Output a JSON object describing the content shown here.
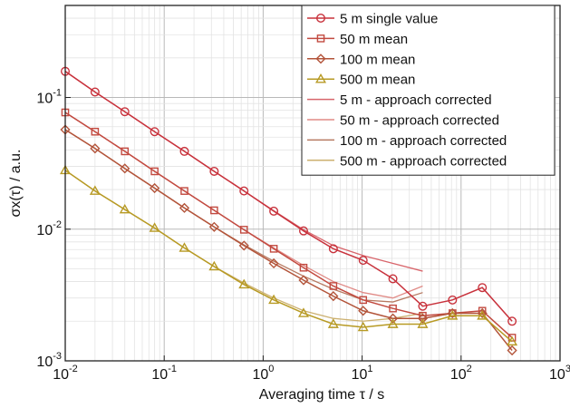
{
  "chart_data": {
    "type": "line",
    "xscale": "log",
    "yscale": "log",
    "xlim": [
      0.01,
      1000
    ],
    "ylim": [
      0.001,
      0.5
    ],
    "xlabel": "Averaging time τ / s",
    "ylabel": "σx(τ) / a.u.",
    "x_ticks": [
      {
        "value": 0.01,
        "base": "10",
        "exp": "-2"
      },
      {
        "value": 0.1,
        "base": "10",
        "exp": "-1"
      },
      {
        "value": 1,
        "base": "10",
        "exp": "0"
      },
      {
        "value": 10,
        "base": "10",
        "exp": "1"
      },
      {
        "value": 100,
        "base": "10",
        "exp": "2"
      },
      {
        "value": 1000,
        "base": "10",
        "exp": "3"
      }
    ],
    "y_ticks": [
      {
        "value": 0.001,
        "base": "10",
        "exp": "-3"
      },
      {
        "value": 0.01,
        "base": "10",
        "exp": "-2"
      },
      {
        "value": 0.1,
        "base": "10",
        "exp": "-1"
      }
    ],
    "grid": true,
    "legend_position": "top-right",
    "series": [
      {
        "name": "5 m single value",
        "color": "#c8323c",
        "marker": "circle",
        "x": [
          0.01,
          0.02,
          0.04,
          0.08,
          0.16,
          0.32,
          0.64,
          1.28,
          2.56,
          5.12,
          10.24,
          20.48,
          40.96,
          81.92,
          163.84,
          327.68
        ],
        "y": [
          0.158,
          0.11,
          0.078,
          0.055,
          0.039,
          0.0275,
          0.0195,
          0.0137,
          0.0097,
          0.0071,
          0.0058,
          0.0042,
          0.0026,
          0.0029,
          0.0036,
          0.002
        ]
      },
      {
        "name": "50 m mean",
        "color": "#c24a40",
        "marker": "square",
        "x": [
          0.01,
          0.02,
          0.04,
          0.08,
          0.16,
          0.32,
          0.64,
          1.28,
          2.56,
          5.12,
          10.24,
          20.48,
          40.96,
          81.92,
          163.84,
          327.68
        ],
        "y": [
          0.077,
          0.055,
          0.039,
          0.0275,
          0.0195,
          0.0139,
          0.0099,
          0.0071,
          0.0051,
          0.0037,
          0.0029,
          0.0025,
          0.0022,
          0.0023,
          0.0024,
          0.0015
        ]
      },
      {
        "name": "100 m mean",
        "color": "#b3543a",
        "marker": "diamond",
        "x": [
          0.01,
          0.02,
          0.04,
          0.08,
          0.16,
          0.32,
          0.64,
          1.28,
          2.56,
          5.12,
          10.24,
          20.48,
          40.96,
          81.92,
          163.84,
          327.68
        ],
        "y": [
          0.057,
          0.041,
          0.0289,
          0.0205,
          0.0145,
          0.0104,
          0.0075,
          0.0055,
          0.0041,
          0.0031,
          0.0024,
          0.0021,
          0.0021,
          0.0023,
          0.0023,
          0.0012
        ]
      },
      {
        "name": "500 m mean",
        "color": "#b79a24",
        "marker": "triangle",
        "x": [
          0.01,
          0.02,
          0.04,
          0.08,
          0.16,
          0.32,
          0.64,
          1.28,
          2.56,
          5.12,
          10.24,
          20.48,
          40.96,
          81.92,
          163.84,
          327.68
        ],
        "y": [
          0.028,
          0.0195,
          0.0141,
          0.0102,
          0.0072,
          0.0052,
          0.0038,
          0.0029,
          0.0023,
          0.0019,
          0.0018,
          0.0019,
          0.0019,
          0.0022,
          0.0022,
          0.0014
        ]
      },
      {
        "name": "5 m - approach corrected",
        "color": "#d8656b",
        "marker": "none",
        "x": [
          0.01,
          0.02,
          0.04,
          0.08,
          0.16,
          0.32,
          0.64,
          1.28,
          2.56,
          5.12,
          10.24,
          20.48,
          40.96
        ],
        "y": [
          0.158,
          0.11,
          0.078,
          0.055,
          0.039,
          0.0275,
          0.0195,
          0.0138,
          0.0099,
          0.0075,
          0.0063,
          0.0055,
          0.0048
        ]
      },
      {
        "name": "50 m - approach corrected",
        "color": "#e08a86",
        "marker": "none",
        "x": [
          0.01,
          0.02,
          0.04,
          0.08,
          0.16,
          0.32,
          0.64,
          1.28,
          2.56,
          5.12,
          10.24,
          20.48,
          40.96
        ],
        "y": [
          0.077,
          0.055,
          0.039,
          0.0275,
          0.0195,
          0.0139,
          0.0099,
          0.0072,
          0.0053,
          0.004,
          0.0033,
          0.003,
          0.0037
        ]
      },
      {
        "name": "100 m - approach corrected",
        "color": "#b77a62",
        "marker": "none",
        "x": [
          0.01,
          0.02,
          0.04,
          0.08,
          0.16,
          0.32,
          0.64,
          1.28,
          2.56,
          5.12,
          10.24,
          20.48,
          40.96
        ],
        "y": [
          0.057,
          0.041,
          0.0289,
          0.0205,
          0.0145,
          0.0104,
          0.0076,
          0.0057,
          0.0044,
          0.0035,
          0.0029,
          0.0028,
          0.0033
        ]
      },
      {
        "name": "500 m - approach corrected",
        "color": "#ccb070",
        "marker": "none",
        "x": [
          0.01,
          0.02,
          0.04,
          0.08,
          0.16,
          0.32,
          0.64,
          1.28,
          2.56,
          5.12,
          10.24,
          20.48,
          40.96
        ],
        "y": [
          0.028,
          0.0195,
          0.0141,
          0.0102,
          0.0072,
          0.0052,
          0.0039,
          0.003,
          0.0024,
          0.0021,
          0.002,
          0.0021,
          0.0023
        ]
      }
    ]
  }
}
